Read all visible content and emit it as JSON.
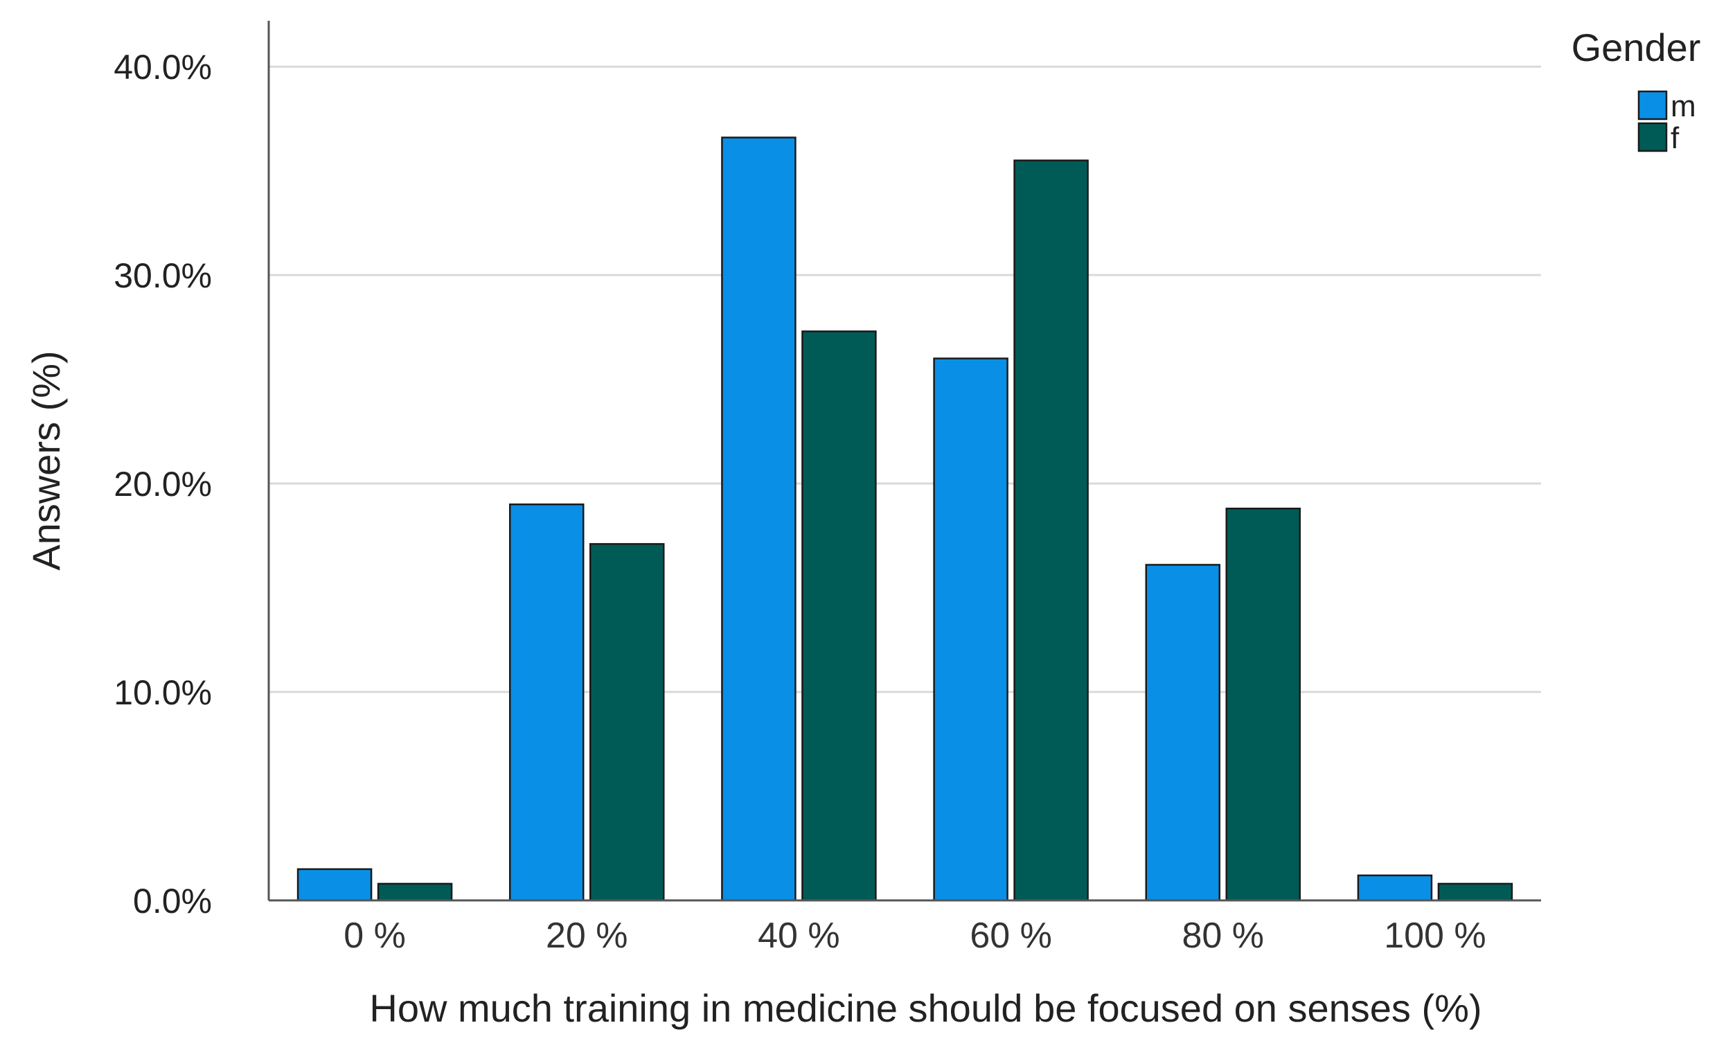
{
  "chart_data": {
    "type": "bar",
    "xlabel": "How much training in medicine should be focused on senses (%)",
    "ylabel": "Answers (%)",
    "categories": [
      "0 %",
      "20 %",
      "40 %",
      "60 %",
      "80 %",
      "100 %"
    ],
    "series": [
      {
        "name": "m",
        "color": "#0a8fe6",
        "values": [
          1.5,
          19.0,
          36.6,
          26.0,
          16.1,
          1.2
        ]
      },
      {
        "name": "f",
        "color": "#005b56",
        "values": [
          0.8,
          17.1,
          27.3,
          35.5,
          18.8,
          0.8
        ]
      }
    ],
    "ylim": [
      0,
      42.2
    ],
    "yticks": [
      {
        "value": 0,
        "label": "0.0%"
      },
      {
        "value": 10,
        "label": "10.0%"
      },
      {
        "value": 20,
        "label": "20.0%"
      },
      {
        "value": 30,
        "label": "30.0%"
      },
      {
        "value": 40,
        "label": "40.0%"
      }
    ],
    "grid": true,
    "legend": {
      "title": "Gender",
      "position": "top-right"
    }
  }
}
